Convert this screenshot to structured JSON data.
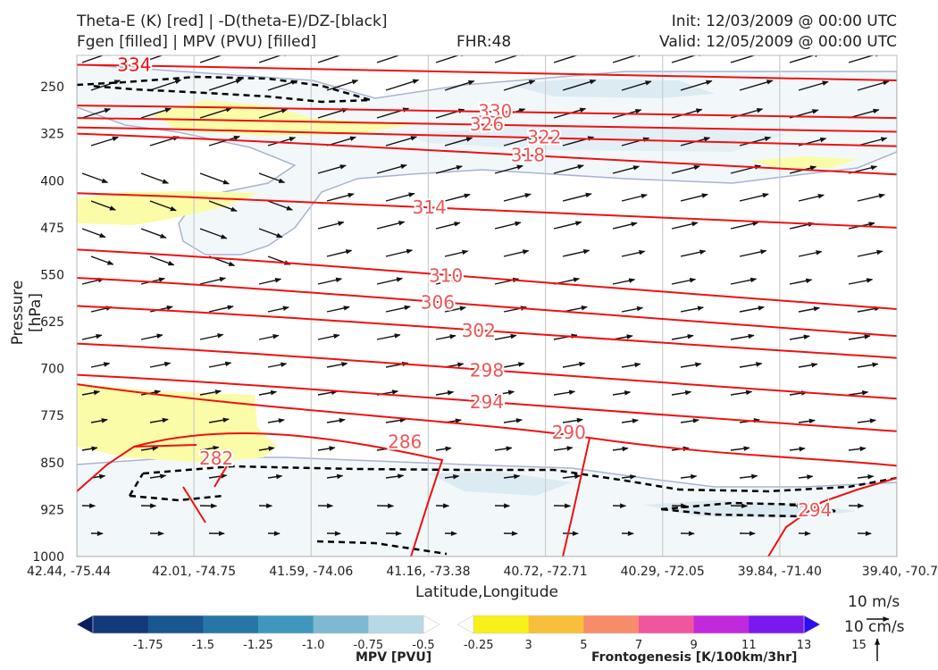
{
  "header": {
    "line1_left": "Theta-E (K) [red] | -D(theta-E)/DZ-[black]",
    "line2_left": "Fgen [filled] | MPV (PVU) [filled]",
    "line2_center": "FHR:48",
    "line1_right": "Init: 12/03/2009 @ 00:00 UTC",
    "line2_right": "Valid: 12/05/2009 @ 00:00 UTC"
  },
  "chart_data": {
    "type": "cross-section",
    "xlabel": "Latitude,Longitude",
    "ylabel": "Pressure [hPa]",
    "x_ticks": [
      "42.44, -75.44",
      "42.01, -74.75",
      "41.59, -74.06",
      "41.16, -73.38",
      "40.72, -72.71",
      "40.29, -72.05",
      "39.84, -71.40",
      "39.40, -70.7"
    ],
    "y_ticks": [
      250,
      325,
      400,
      475,
      550,
      625,
      700,
      775,
      850,
      925,
      1000
    ],
    "ylim": [
      1000,
      200
    ],
    "y_inverted": true,
    "grid": true,
    "theta_e": {
      "color": "#ee1111",
      "label_color": "#ee5555",
      "contours": [
        {
          "value": 334,
          "label": "334",
          "y": [
            215,
            240
          ],
          "label_x": 0.07
        },
        {
          "value": 330,
          "label": "330",
          "y": [
            280,
            300
          ],
          "label_x": 0.51
        },
        {
          "value": 326,
          "label": "326",
          "y": [
            300,
            322
          ],
          "label_x": 0.5
        },
        {
          "value": 322,
          "label": "322",
          "y": [
            315,
            345
          ],
          "label_x": 0.57
        },
        {
          "value": 318,
          "label": "318",
          "y": [
            325,
            390
          ],
          "label_x": 0.55
        },
        {
          "value": 314,
          "label": "314",
          "y": [
            420,
            475
          ],
          "label_x": 0.43
        },
        {
          "value": 310,
          "label": "310",
          "y": [
            510,
            605
          ],
          "label_x": 0.45
        },
        {
          "value": 306,
          "label": "306",
          "y": [
            555,
            648
          ],
          "label_x": 0.44
        },
        {
          "value": 302,
          "label": "302",
          "y": [
            600,
            683
          ],
          "label_x": 0.49
        },
        {
          "value": 298,
          "label": "298",
          "y": [
            660,
            748
          ],
          "label_x": 0.5
        },
        {
          "value": 294,
          "label": "294",
          "y": [
            710,
            800
          ],
          "label_x": 0.5
        },
        {
          "value": 290,
          "label": "290",
          "y": [
            725,
            855
          ],
          "label_x": 0.6
        },
        {
          "value": 286,
          "label": "286",
          "y": [
            780,
            875
          ],
          "label_x": 0.4
        },
        {
          "value": 282,
          "label": "282",
          "y": [
            820,
            1000
          ],
          "label_x": 0.17
        },
        {
          "value": 294,
          "label": "294",
          "y": [
            880,
            960
          ],
          "label_x": 0.9
        }
      ]
    },
    "vector_reference": {
      "horizontal": "10 m/s",
      "vertical": "10 cm/s"
    },
    "colorbars": [
      {
        "name": "MPV [PVU]",
        "levels": [
          "-1.75",
          "-1.5",
          "-1.25",
          "-1.0",
          "-0.75",
          "-0.5",
          "-0.25"
        ],
        "colors": [
          "#0b1f5e",
          "#12397a",
          "#1a5690",
          "#2677a6",
          "#3f97bd",
          "#7fb9d1",
          "#b7d9e6",
          "#ffffff"
        ]
      },
      {
        "name": "Frontogenesis [K/100km/3hr]",
        "levels": [
          "3",
          "5",
          "7",
          "9",
          "11",
          "13",
          "15"
        ],
        "colors": [
          "#ffffff",
          "#f7f01a",
          "#f7bf3a",
          "#f78c6a",
          "#f0569e",
          "#c02adc",
          "#7a18f0",
          "#2e0df6"
        ]
      }
    ]
  }
}
